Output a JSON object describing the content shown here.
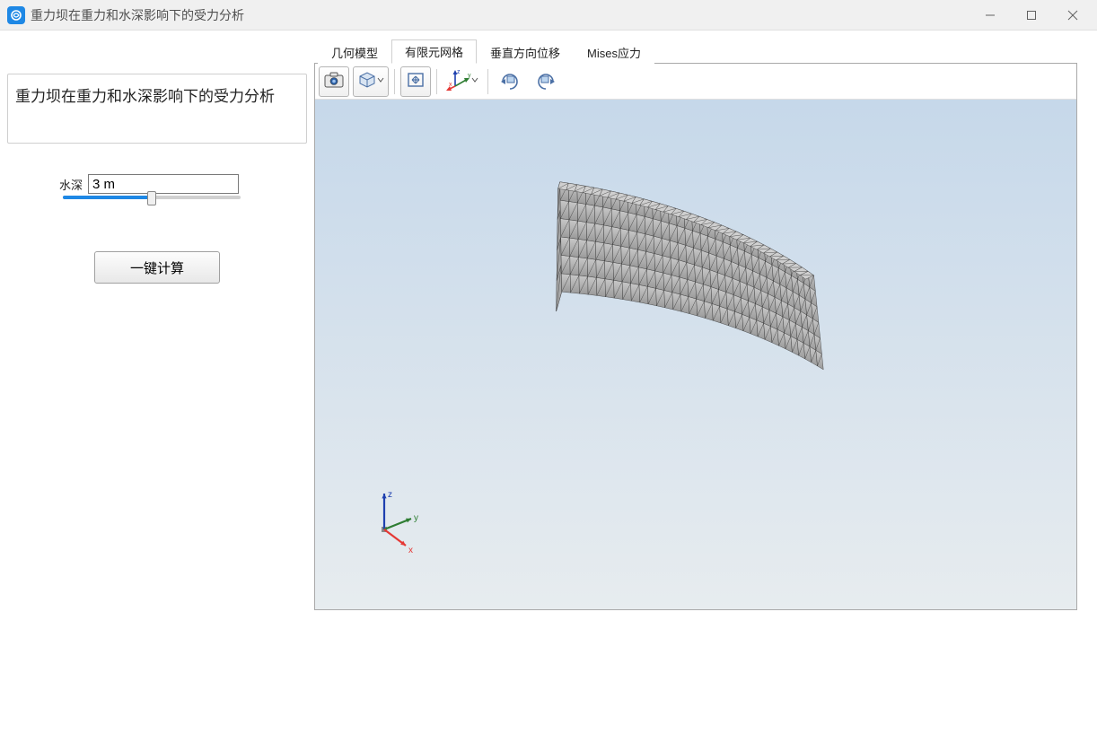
{
  "window": {
    "title": "重力坝在重力和水深影响下的受力分析",
    "icon_color": "#1e88e5"
  },
  "sidebar": {
    "description": "重力坝在重力和水深影响下的受力分析",
    "depth_label": "水深",
    "depth_value": "3 m",
    "slider": {
      "min": 0,
      "max": 6,
      "value": 3,
      "fill_percent": 50,
      "track_color": "#d0d0d0",
      "fill_color": "#1e88e5"
    },
    "compute_label": "一键计算"
  },
  "tabs": {
    "items": [
      {
        "id": "geom",
        "label": "几何模型"
      },
      {
        "id": "mesh",
        "label": "有限元网格"
      },
      {
        "id": "vdisp",
        "label": "垂直方向位移"
      },
      {
        "id": "mises",
        "label": "Mises应力"
      }
    ],
    "active_index": 1
  },
  "toolbar": {
    "items": [
      {
        "name": "screenshot-icon",
        "tooltip": "截图"
      },
      {
        "name": "render-mode-icon",
        "tooltip": "渲染模式",
        "has_dropdown": true
      },
      {
        "name": "zoom-extents-icon",
        "tooltip": "全部缩放"
      },
      {
        "name": "axes-icon",
        "tooltip": "坐标轴",
        "has_dropdown": true
      },
      {
        "name": "rotate-cw-icon",
        "tooltip": "顺时针旋转"
      },
      {
        "name": "rotate-ccw-icon",
        "tooltip": "逆时针旋转"
      }
    ]
  },
  "viewport": {
    "type": "3d-mesh",
    "bg_gradient_top": "#c6d8ea",
    "bg_gradient_bottom": "#e7ecef",
    "mesh_fill": "#b8b8b8",
    "mesh_edge": "#333333",
    "mesh_edge_width": 0.4,
    "triad": {
      "x_color": "#e53935",
      "y_color": "#2e7d32",
      "z_color": "#1e40af",
      "x_label": "x",
      "y_label": "y",
      "z_label": "z"
    }
  }
}
